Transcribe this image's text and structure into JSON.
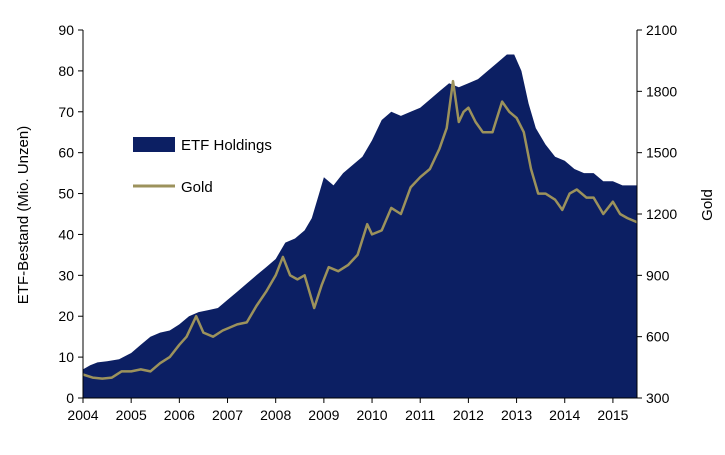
{
  "chart_data": {
    "type": "area",
    "title": "",
    "xlabel": "",
    "x_ticks": [
      "2004",
      "2005",
      "2006",
      "2007",
      "2008",
      "2009",
      "2010",
      "2011",
      "2012",
      "2013",
      "2014",
      "2015"
    ],
    "xlim": [
      2004.0,
      2015.5
    ],
    "y_left": {
      "label": "ETF-Bestand (Mio. Unzen)",
      "lim": [
        0,
        90
      ],
      "ticks": [
        "0",
        "10",
        "20",
        "30",
        "40",
        "50",
        "60",
        "70",
        "80",
        "90"
      ]
    },
    "y_right": {
      "label": "Gold",
      "lim": [
        300,
        2100
      ],
      "ticks": [
        "300",
        "600",
        "900",
        "1200",
        "1500",
        "1800",
        "2100"
      ]
    },
    "grid": false,
    "legend": {
      "placement": "left-center",
      "entries": [
        "ETF Holdings",
        "Gold"
      ]
    },
    "colors": {
      "etf": "#0c1f63",
      "gold": "#9c925c"
    },
    "series": [
      {
        "name": "ETF Holdings",
        "axis": "left",
        "style": "area",
        "points": [
          [
            2004.0,
            7
          ],
          [
            2004.15,
            8
          ],
          [
            2004.3,
            8.7
          ],
          [
            2004.5,
            9
          ],
          [
            2004.75,
            9.5
          ],
          [
            2005.0,
            11
          ],
          [
            2005.2,
            13
          ],
          [
            2005.4,
            15
          ],
          [
            2005.6,
            16
          ],
          [
            2005.8,
            16.5
          ],
          [
            2006.0,
            18
          ],
          [
            2006.2,
            20
          ],
          [
            2006.4,
            21
          ],
          [
            2006.6,
            21.5
          ],
          [
            2006.8,
            22
          ],
          [
            2007.0,
            24
          ],
          [
            2007.2,
            26
          ],
          [
            2007.4,
            28
          ],
          [
            2007.6,
            30
          ],
          [
            2007.8,
            32
          ],
          [
            2008.0,
            34
          ],
          [
            2008.2,
            38
          ],
          [
            2008.4,
            39
          ],
          [
            2008.6,
            41
          ],
          [
            2008.75,
            44
          ],
          [
            2008.9,
            50
          ],
          [
            2009.0,
            54
          ],
          [
            2009.2,
            52
          ],
          [
            2009.4,
            55
          ],
          [
            2009.6,
            57
          ],
          [
            2009.8,
            59
          ],
          [
            2010.0,
            63
          ],
          [
            2010.2,
            68
          ],
          [
            2010.4,
            70
          ],
          [
            2010.6,
            69
          ],
          [
            2010.8,
            70
          ],
          [
            2011.0,
            71
          ],
          [
            2011.2,
            73
          ],
          [
            2011.4,
            75
          ],
          [
            2011.6,
            77
          ],
          [
            2011.8,
            76
          ],
          [
            2012.0,
            77
          ],
          [
            2012.2,
            78
          ],
          [
            2012.4,
            80
          ],
          [
            2012.6,
            82
          ],
          [
            2012.8,
            84
          ],
          [
            2012.95,
            84
          ],
          [
            2013.1,
            80
          ],
          [
            2013.25,
            72
          ],
          [
            2013.4,
            66
          ],
          [
            2013.6,
            62
          ],
          [
            2013.8,
            59
          ],
          [
            2014.0,
            58
          ],
          [
            2014.2,
            56
          ],
          [
            2014.4,
            55
          ],
          [
            2014.6,
            55
          ],
          [
            2014.8,
            53
          ],
          [
            2015.0,
            53
          ],
          [
            2015.2,
            52
          ],
          [
            2015.4,
            52
          ],
          [
            2015.5,
            52
          ]
        ]
      },
      {
        "name": "Gold",
        "axis": "right",
        "style": "line",
        "points": [
          [
            2004.0,
            415
          ],
          [
            2004.2,
            400
          ],
          [
            2004.4,
            395
          ],
          [
            2004.6,
            400
          ],
          [
            2004.8,
            430
          ],
          [
            2005.0,
            430
          ],
          [
            2005.2,
            440
          ],
          [
            2005.4,
            430
          ],
          [
            2005.6,
            470
          ],
          [
            2005.8,
            500
          ],
          [
            2006.0,
            560
          ],
          [
            2006.15,
            600
          ],
          [
            2006.35,
            700
          ],
          [
            2006.5,
            620
          ],
          [
            2006.7,
            600
          ],
          [
            2006.9,
            630
          ],
          [
            2007.0,
            640
          ],
          [
            2007.2,
            660
          ],
          [
            2007.4,
            670
          ],
          [
            2007.6,
            750
          ],
          [
            2007.8,
            820
          ],
          [
            2008.0,
            900
          ],
          [
            2008.15,
            990
          ],
          [
            2008.3,
            900
          ],
          [
            2008.45,
            880
          ],
          [
            2008.6,
            900
          ],
          [
            2008.8,
            740
          ],
          [
            2008.95,
            850
          ],
          [
            2009.1,
            940
          ],
          [
            2009.3,
            920
          ],
          [
            2009.5,
            950
          ],
          [
            2009.7,
            1000
          ],
          [
            2009.9,
            1150
          ],
          [
            2010.0,
            1100
          ],
          [
            2010.2,
            1120
          ],
          [
            2010.4,
            1230
          ],
          [
            2010.6,
            1200
          ],
          [
            2010.8,
            1330
          ],
          [
            2011.0,
            1380
          ],
          [
            2011.2,
            1420
          ],
          [
            2011.4,
            1520
          ],
          [
            2011.55,
            1620
          ],
          [
            2011.68,
            1850
          ],
          [
            2011.8,
            1650
          ],
          [
            2011.9,
            1700
          ],
          [
            2012.0,
            1720
          ],
          [
            2012.15,
            1650
          ],
          [
            2012.3,
            1600
          ],
          [
            2012.5,
            1600
          ],
          [
            2012.7,
            1750
          ],
          [
            2012.85,
            1700
          ],
          [
            2013.0,
            1670
          ],
          [
            2013.15,
            1600
          ],
          [
            2013.3,
            1420
          ],
          [
            2013.45,
            1300
          ],
          [
            2013.6,
            1300
          ],
          [
            2013.8,
            1270
          ],
          [
            2013.95,
            1220
          ],
          [
            2014.1,
            1300
          ],
          [
            2014.25,
            1320
          ],
          [
            2014.45,
            1280
          ],
          [
            2014.6,
            1280
          ],
          [
            2014.8,
            1200
          ],
          [
            2015.0,
            1260
          ],
          [
            2015.15,
            1200
          ],
          [
            2015.3,
            1180
          ],
          [
            2015.5,
            1160
          ]
        ]
      }
    ]
  }
}
